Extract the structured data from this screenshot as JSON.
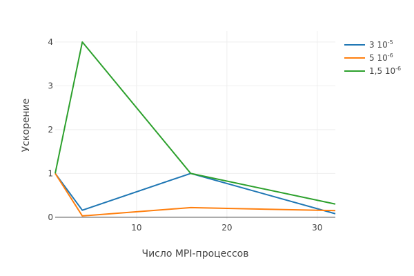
{
  "chart_data": {
    "type": "line",
    "xlabel": "Число MPI-процессов",
    "ylabel": "Ускорение",
    "xlim": [
      1,
      32
    ],
    "ylim": [
      -0.05,
      4.25
    ],
    "x_ticks": [
      10,
      20,
      30
    ],
    "y_ticks": [
      0,
      1,
      2,
      3,
      4
    ],
    "grid": true,
    "legend_position": "top-right",
    "series": [
      {
        "name_base": "3 10",
        "name_exp": "-5",
        "color": "#1f77b4",
        "x": [
          1,
          4,
          16,
          32
        ],
        "y": [
          1,
          0.16,
          1.0,
          0.08
        ]
      },
      {
        "name_base": "5 10",
        "name_exp": "-6",
        "color": "#ff7f0e",
        "x": [
          1,
          4,
          16,
          32
        ],
        "y": [
          1,
          0.03,
          0.22,
          0.15
        ]
      },
      {
        "name_base": "1,5 10",
        "name_exp": "-6",
        "color": "#2ca02c",
        "x": [
          1,
          4,
          16,
          32
        ],
        "y": [
          1,
          4.0,
          1.0,
          0.3
        ]
      }
    ]
  }
}
